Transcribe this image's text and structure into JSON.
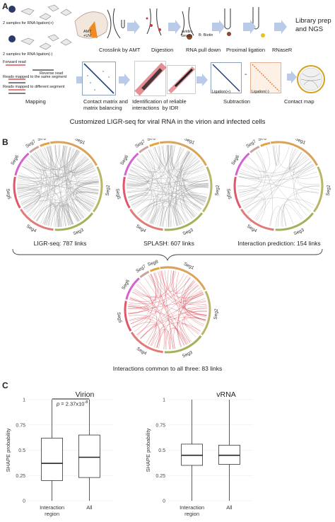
{
  "panels": {
    "a": "A",
    "b": "B",
    "c": "C"
  },
  "panel_a": {
    "left_labels": {
      "ligation_plus": "2 samples for RNA ligation(+)",
      "ligation_minus": "2 samples for RNA ligation(-)",
      "amt_uv": "AMT\n+UV",
      "forward_read": "Forward read",
      "reverse_read": "Reverse read",
      "same_segment": "Reads mapped to the same segment",
      "different_segment": "Reads mapped to different segment"
    },
    "step_captions": {
      "crosslink": "Crosslink by AMT",
      "digestion": "Digestion",
      "pulldown": "RNA pull down",
      "proximal": "Proximal ligation",
      "rnaser": "RNaseR",
      "library": "Library prep\nand NGS",
      "mapping": "Mapping",
      "contact": "Contact matrix and\nmatrix balancing",
      "idr": "Identification of reliable\ninteractions  by IDR",
      "subtraction": "Subtraction",
      "contact_map": "Contact map"
    },
    "annotations": {
      "avidin": "avidin-\nbeads",
      "biotin": "B: Biotin",
      "lig_plus": "Ligation(+)",
      "lig_minus": "Ligation(-)",
      "minus_sign": "-"
    },
    "title": "Customized LIGR-seq for viral RNA in the virion and infected cells"
  },
  "panel_b": {
    "segments": [
      "Seg1",
      "Seg2",
      "Seg3",
      "Seg4",
      "Seg5",
      "Seg6",
      "Seg7",
      "Seg8"
    ],
    "segment_colors": [
      "#d9a35a",
      "#b9b66a",
      "#a3b25a",
      "#e07b76",
      "#e0566a",
      "#d462d0",
      "#c9a3a0",
      "#e8a23a"
    ],
    "circos": [
      {
        "caption": "LIGR-seq: 787 links",
        "link_color": "#9a9a9a",
        "links": 787
      },
      {
        "caption": "SPLASH: 607 links",
        "link_color": "#9a9a9a",
        "links": 607
      },
      {
        "caption": "Interaction prediction: 154 links",
        "link_color": "#9a9a9a",
        "links": 154
      },
      {
        "caption": "Interactions common to all three: 83 links",
        "link_color": "#d0343f",
        "links": 83
      }
    ]
  },
  "chart_data": [
    {
      "type": "box",
      "title": "Virion",
      "ylabel": "SHAPE probability",
      "ylim": [
        0,
        1
      ],
      "yticks": [
        "0",
        "0.25",
        "0.5",
        "0.75",
        "1"
      ],
      "categories": [
        "Interaction\nregion",
        "All"
      ],
      "boxes": [
        {
          "min": 0,
          "q1": 0.2,
          "median": 0.37,
          "q3": 0.62,
          "max": 1
        },
        {
          "min": 0,
          "q1": 0.23,
          "median": 0.43,
          "q3": 0.65,
          "max": 1
        }
      ],
      "annotation": "p = 2.37x10^-8",
      "p_prefix": "p",
      "p_value": " = 2.37x10",
      "p_exp": "-8"
    },
    {
      "type": "box",
      "title": "vRNA",
      "ylabel": "SHAPE probability",
      "ylim": [
        0,
        1
      ],
      "yticks": [
        "0",
        "0.25",
        "0.5",
        "0.75",
        "1"
      ],
      "categories": [
        "Interaction\nregion",
        "All"
      ],
      "boxes": [
        {
          "min": 0,
          "q1": 0.35,
          "median": 0.45,
          "q3": 0.56,
          "max": 1
        },
        {
          "min": 0,
          "q1": 0.36,
          "median": 0.45,
          "q3": 0.55,
          "max": 1
        }
      ]
    }
  ]
}
